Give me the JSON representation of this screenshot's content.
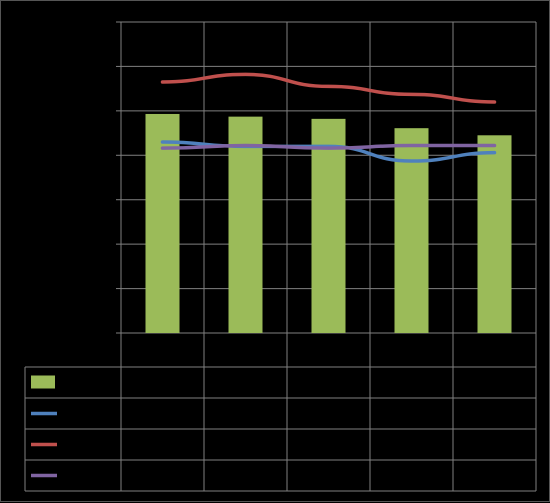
{
  "chart_data": {
    "type": "bar",
    "title": "",
    "xlabel": "",
    "ylabel": "",
    "ylim": [
      0,
      7
    ],
    "grid": true,
    "legend_placement": "bottom-table",
    "categories": [
      "",
      "",
      "",
      "",
      ""
    ],
    "series": [
      {
        "type": "bar",
        "color": "#9BBB59",
        "values": [
          4.93,
          4.87,
          4.82,
          4.61,
          4.45
        ]
      },
      {
        "type": "line",
        "color": "#4F81BD",
        "values": [
          4.3,
          4.2,
          4.2,
          3.87,
          4.06
        ]
      },
      {
        "type": "line",
        "color": "#C0504D",
        "values": [
          5.65,
          5.82,
          5.55,
          5.37,
          5.2
        ]
      },
      {
        "type": "line",
        "color": "#8064A2",
        "values": [
          4.16,
          4.22,
          4.16,
          4.22,
          4.22
        ]
      }
    ]
  }
}
